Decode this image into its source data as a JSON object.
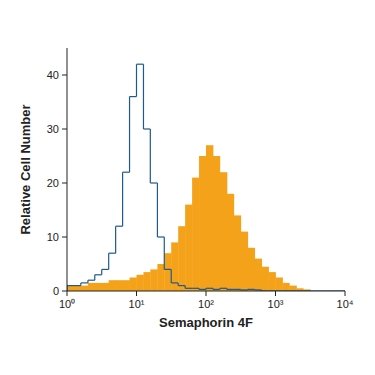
{
  "chart_data": {
    "type": "histogram",
    "log": "x",
    "x_label": "Semaphorin 4F",
    "y_label": "Relative Cell Number",
    "bins": [
      1,
      1.26,
      1.58,
      2,
      2.51,
      3.16,
      3.98,
      5.01,
      6.31,
      7.94,
      10,
      12.6,
      15.8,
      20,
      25.1,
      31.6,
      39.8,
      50.1,
      63.1,
      79.4,
      100,
      126,
      158,
      200,
      251,
      316,
      398,
      501,
      631,
      794,
      1000,
      1260,
      1580,
      2000,
      2510,
      3160,
      3980,
      5010,
      6310,
      7940,
      10000
    ],
    "series": [
      {
        "type": "area",
        "color": "#f5a21b",
        "values": [
          1,
          1,
          1,
          1.5,
          1.5,
          1.5,
          2,
          2,
          2,
          2.5,
          3,
          3.5,
          4,
          5,
          7,
          9,
          12,
          16,
          21,
          25,
          27,
          25,
          22,
          18,
          14,
          11,
          8,
          6,
          4.5,
          3.5,
          2.5,
          1.5,
          1,
          0.5,
          0.3,
          0,
          0,
          0,
          0,
          0
        ]
      },
      {
        "type": "line",
        "color": "#1f5a8c",
        "values": [
          1,
          1,
          1.5,
          2,
          3,
          4,
          7,
          12,
          22,
          36,
          42,
          30,
          20,
          10,
          4,
          1.5,
          1,
          0.5,
          0.5,
          0.3,
          0.5,
          0.3,
          0.5,
          0.3,
          0.3,
          0.2,
          0.3,
          0.2,
          0,
          0,
          0,
          0,
          0,
          0,
          0,
          0,
          0,
          0,
          0,
          0
        ]
      }
    ],
    "xlim": [
      1,
      10000
    ],
    "xticks": [
      {
        "value": 1,
        "label": "10⁰"
      },
      {
        "value": 10,
        "label": "10¹"
      },
      {
        "value": 100,
        "label": "10²"
      },
      {
        "value": 1000,
        "label": "10³"
      },
      {
        "value": 10000,
        "label": "10⁴"
      }
    ],
    "ylim": [
      0,
      45
    ],
    "yticks": [
      0,
      10,
      20,
      30,
      40
    ]
  }
}
